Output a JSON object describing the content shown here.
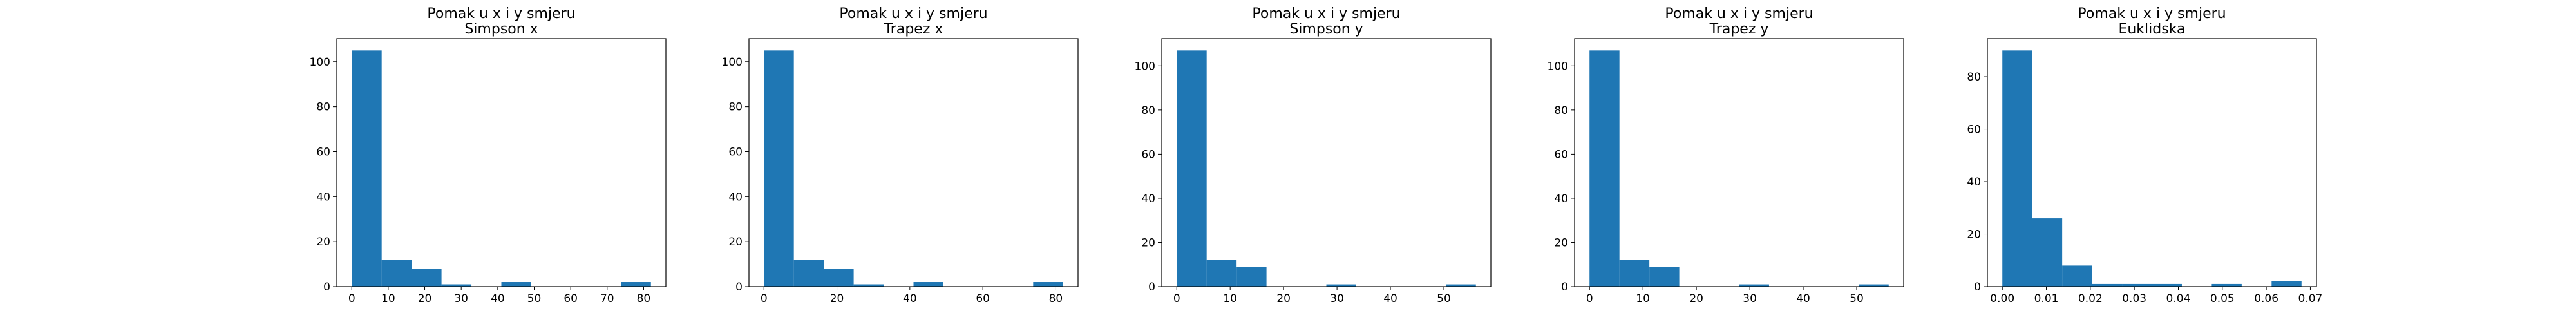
{
  "figure": {
    "bar_color": "#1f77b4",
    "frame_color": "#000000",
    "background": "#ffffff"
  },
  "chart_data": [
    {
      "type": "bar",
      "histogram": true,
      "title": "Pomak u x i y smjeru",
      "subtitle": "Simpson x",
      "xlabel": "",
      "ylabel": "",
      "bin_edges": [
        0,
        8.2,
        16.4,
        24.6,
        32.8,
        41,
        49.2,
        57.4,
        65.6,
        73.8,
        82
      ],
      "values": [
        105,
        12,
        8,
        1,
        0,
        2,
        0,
        0,
        0,
        2
      ],
      "xlim": [
        -4.1,
        86.1
      ],
      "ylim": [
        0,
        110.25
      ],
      "xticks": [
        0,
        10,
        20,
        30,
        40,
        50,
        60,
        70,
        80
      ],
      "xtick_labels": [
        "0",
        "10",
        "20",
        "30",
        "40",
        "50",
        "60",
        "70",
        "80"
      ],
      "yticks": [
        0,
        20,
        40,
        60,
        80,
        100
      ],
      "ytick_labels": [
        "0",
        "20",
        "40",
        "60",
        "80",
        "100"
      ],
      "grid": false
    },
    {
      "type": "bar",
      "histogram": true,
      "title": "Pomak u x i y smjeru",
      "subtitle": "Trapez x",
      "xlabel": "",
      "ylabel": "",
      "bin_edges": [
        0,
        8.2,
        16.4,
        24.6,
        32.8,
        41,
        49.2,
        57.4,
        65.6,
        73.8,
        82
      ],
      "values": [
        105,
        12,
        8,
        1,
        0,
        2,
        0,
        0,
        0,
        2
      ],
      "xlim": [
        -4.1,
        86.1
      ],
      "ylim": [
        0,
        110.25
      ],
      "xticks": [
        0,
        20,
        40,
        60,
        80
      ],
      "xtick_labels": [
        "0",
        "20",
        "40",
        "60",
        "80"
      ],
      "yticks": [
        0,
        20,
        40,
        60,
        80,
        100
      ],
      "ytick_labels": [
        "0",
        "20",
        "40",
        "60",
        "80",
        "100"
      ],
      "grid": false
    },
    {
      "type": "bar",
      "histogram": true,
      "title": "Pomak u x i y smjeru",
      "subtitle": "Simpson y",
      "xlabel": "",
      "ylabel": "",
      "bin_edges": [
        0,
        5.6,
        11.2,
        16.8,
        22.4,
        28,
        33.6,
        39.2,
        44.8,
        50.4,
        56
      ],
      "values": [
        107,
        12,
        9,
        0,
        0,
        1,
        0,
        0,
        0,
        1
      ],
      "xlim": [
        -2.8,
        58.8
      ],
      "ylim": [
        0,
        112.35
      ],
      "xticks": [
        0,
        10,
        20,
        30,
        40,
        50
      ],
      "xtick_labels": [
        "0",
        "10",
        "20",
        "30",
        "40",
        "50"
      ],
      "yticks": [
        0,
        20,
        40,
        60,
        80,
        100
      ],
      "ytick_labels": [
        "0",
        "20",
        "40",
        "60",
        "80",
        "100"
      ],
      "grid": false
    },
    {
      "type": "bar",
      "histogram": true,
      "title": "Pomak u x i y smjeru",
      "subtitle": "Trapez y",
      "xlabel": "",
      "ylabel": "",
      "bin_edges": [
        0,
        5.6,
        11.2,
        16.8,
        22.4,
        28,
        33.6,
        39.2,
        44.8,
        50.4,
        56
      ],
      "values": [
        107,
        12,
        9,
        0,
        0,
        1,
        0,
        0,
        0,
        1
      ],
      "xlim": [
        -2.8,
        58.8
      ],
      "ylim": [
        0,
        112.35
      ],
      "xticks": [
        0,
        10,
        20,
        30,
        40,
        50
      ],
      "xtick_labels": [
        "0",
        "10",
        "20",
        "30",
        "40",
        "50"
      ],
      "yticks": [
        0,
        20,
        40,
        60,
        80,
        100
      ],
      "ytick_labels": [
        "0",
        "20",
        "40",
        "60",
        "80",
        "100"
      ],
      "grid": false
    },
    {
      "type": "bar",
      "histogram": true,
      "title": "Pomak u x i y smjeru",
      "subtitle": "Euklidska",
      "xlabel": "",
      "ylabel": "",
      "bin_edges": [
        0,
        0.0068,
        0.0136,
        0.0204,
        0.0272,
        0.034,
        0.0408,
        0.0476,
        0.0544,
        0.0612,
        0.068
      ],
      "values": [
        90,
        26,
        8,
        1,
        1,
        1,
        0,
        1,
        0,
        2
      ],
      "xlim": [
        -0.0034,
        0.0714
      ],
      "ylim": [
        0,
        94.5
      ],
      "xticks": [
        0,
        0.01,
        0.02,
        0.03,
        0.04,
        0.05,
        0.06,
        0.07
      ],
      "xtick_labels": [
        "0.00",
        "0.01",
        "0.02",
        "0.03",
        "0.04",
        "0.05",
        "0.06",
        "0.07"
      ],
      "yticks": [
        0,
        20,
        40,
        60,
        80
      ],
      "ytick_labels": [
        "0",
        "20",
        "40",
        "60",
        "80"
      ],
      "grid": false
    }
  ]
}
